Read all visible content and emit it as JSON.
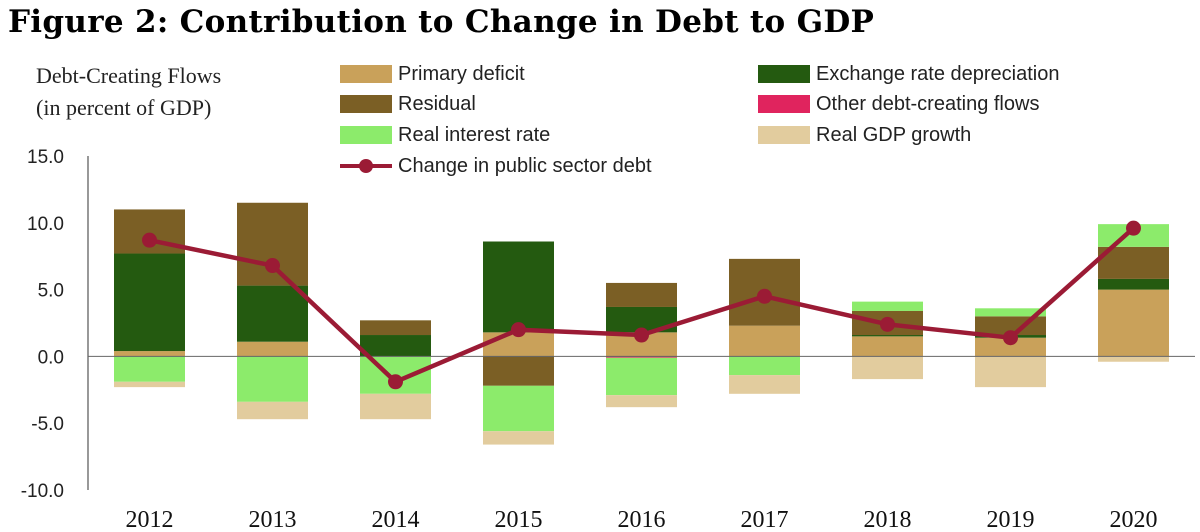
{
  "figure_title": "Figure 2: Contribution to Change in Debt to GDP",
  "y_title_line1": "Debt-Creating Flows",
  "y_title_line2": "(in percent of GDP)",
  "legend": [
    {
      "label": "Primary deficit",
      "color": "#C9A15A"
    },
    {
      "label": "Exchange rate depreciation",
      "color": "#245A10"
    },
    {
      "label": "Residual",
      "color": "#7B5F25"
    },
    {
      "label": "Other debt-creating flows",
      "color": "#E0245E"
    },
    {
      "label": "Real interest rate",
      "color": "#8CEB6B"
    },
    {
      "label": "Real GDP growth",
      "color": "#E2CC9E"
    },
    {
      "label": "Change in public sector debt",
      "color": "#9B1B35"
    }
  ],
  "chart_data": {
    "type": "bar",
    "stacked": true,
    "categories": [
      "2012",
      "2013",
      "2014",
      "2015",
      "2016",
      "2017",
      "2018",
      "2019",
      "2020"
    ],
    "ylim": [
      -10,
      15
    ],
    "yticks": [
      "15.0",
      "10.0",
      "5.0",
      "0.0",
      "-5.0",
      "-10.0"
    ],
    "series": [
      {
        "name": "Primary deficit",
        "color": "#C9A15A",
        "values": [
          0.4,
          1.1,
          0,
          1.8,
          1.8,
          2.3,
          1.5,
          1.4,
          5.0
        ]
      },
      {
        "name": "Exchange rate depreciation",
        "color": "#245A10",
        "values": [
          7.3,
          4.2,
          1.6,
          6.8,
          1.9,
          0,
          0.1,
          0.2,
          0.8
        ]
      },
      {
        "name": "Residual",
        "color": "#7B5F25",
        "values": [
          3.3,
          6.2,
          1.1,
          -2.2,
          1.8,
          5.0,
          1.8,
          1.4,
          2.4
        ]
      },
      {
        "name": "Other debt-creating flows",
        "color": "#E0245E",
        "values": [
          0,
          0,
          0,
          0,
          -0.1,
          0,
          0,
          0,
          0
        ]
      },
      {
        "name": "Real interest rate",
        "color": "#8CEB6B",
        "values": [
          -1.9,
          -3.4,
          -2.8,
          -3.4,
          -2.8,
          -1.4,
          0.7,
          0.6,
          1.7
        ]
      },
      {
        "name": "Real GDP growth",
        "color": "#E2CC9E",
        "values": [
          -0.4,
          -1.3,
          -1.9,
          -1.0,
          -0.9,
          -1.4,
          -1.7,
          -2.3,
          -0.4
        ]
      }
    ],
    "line": {
      "name": "Change in public sector debt",
      "color": "#9B1B35",
      "values": [
        8.7,
        6.8,
        -1.9,
        2.0,
        1.6,
        4.5,
        2.4,
        1.4,
        9.6
      ]
    }
  }
}
